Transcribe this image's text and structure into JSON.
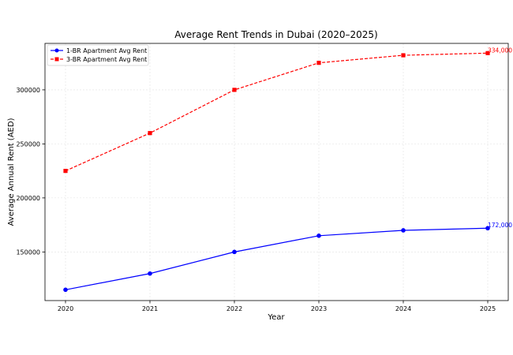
{
  "chart_data": {
    "type": "line",
    "title": "Average Rent Trends in Dubai (2020–2025)",
    "xlabel": "Year",
    "ylabel": "Average Annual Rent (AED)",
    "categories": [
      "2020",
      "2021",
      "2022",
      "2023",
      "2024",
      "2025"
    ],
    "ylim": [
      105000,
      343000
    ],
    "yticks": [
      150000,
      200000,
      250000,
      300000
    ],
    "ytick_labels": [
      "150000",
      "200000",
      "250000",
      "300000"
    ],
    "grid": true,
    "legend_position": "top-left",
    "series": [
      {
        "name": "1-BR Apartment Avg Rent",
        "values": [
          115000,
          130000,
          150000,
          165000,
          170000,
          172000
        ],
        "color": "#0000ff",
        "marker": "circle",
        "line_style": "solid",
        "end_label": "172,000"
      },
      {
        "name": "3-BR Apartment Avg Rent",
        "values": [
          225000,
          260000,
          300000,
          325000,
          332000,
          334000
        ],
        "color": "#ff0000",
        "marker": "square",
        "line_style": "dashed",
        "end_label": "334,000"
      }
    ]
  }
}
